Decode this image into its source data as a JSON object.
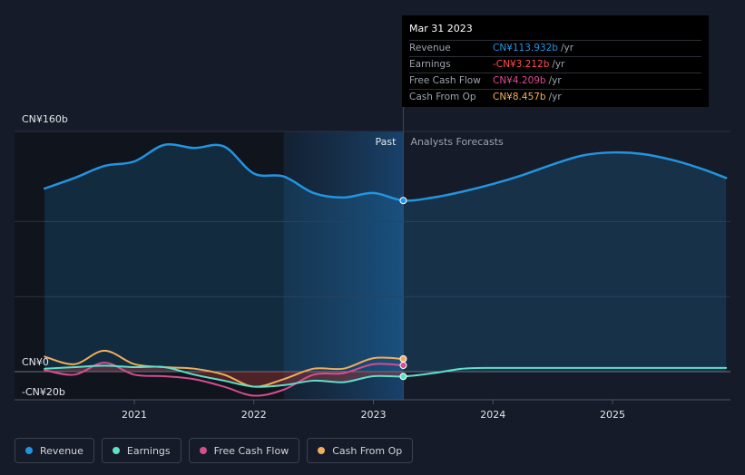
{
  "colors": {
    "revenue": "#2394df",
    "earnings": "#5ee0c8",
    "free_cash_flow": "#d64d90",
    "cash_from_op": "#f0ae5b",
    "background": "#151b28"
  },
  "tooltip": {
    "date": "Mar 31 2023",
    "rows": [
      {
        "label": "Revenue",
        "value": "CN¥113.932b",
        "unit": "/yr",
        "color": "#2394df"
      },
      {
        "label": "Earnings",
        "value": "-CN¥3.212b",
        "unit": "/yr",
        "color": "#ff4d4d"
      },
      {
        "label": "Free Cash Flow",
        "value": "CN¥4.209b",
        "unit": "/yr",
        "color": "#d64d90"
      },
      {
        "label": "Cash From Op",
        "value": "CN¥8.457b",
        "unit": "/yr",
        "color": "#f0ae5b"
      }
    ]
  },
  "legend": [
    {
      "label": "Revenue",
      "color": "#2394df"
    },
    {
      "label": "Earnings",
      "color": "#5ee0c8"
    },
    {
      "label": "Free Cash Flow",
      "color": "#d64d90"
    },
    {
      "label": "Cash From Op",
      "color": "#f0ae5b"
    }
  ],
  "chart_data": {
    "type": "line",
    "title": "",
    "y_tick_labels": [
      "CN¥160b",
      "CN¥0",
      "-CN¥20b"
    ],
    "x_tick_labels": [
      "2021",
      "2022",
      "2023",
      "2024",
      "2025"
    ],
    "x_ticks": [
      2021,
      2022,
      2023,
      2024,
      2025
    ],
    "ylim": [
      -20,
      160
    ],
    "xlim": [
      2020.25,
      2025.95
    ],
    "past_label": "Past",
    "forecast_label": "Analysts Forecasts",
    "present_x": 2023.25,
    "past_band_start": 2022.25,
    "series": [
      {
        "name": "Revenue",
        "key": "revenue",
        "x": [
          2020.25,
          2020.5,
          2020.75,
          2021.0,
          2021.25,
          2021.5,
          2021.75,
          2022.0,
          2022.25,
          2022.5,
          2022.75,
          2023.0,
          2023.25,
          2023.5,
          2023.75,
          2024.0,
          2024.25,
          2024.5,
          2024.75,
          2025.0,
          2025.25,
          2025.5,
          2025.75,
          2025.95
        ],
        "values": [
          122,
          129,
          137,
          140,
          151,
          149,
          150,
          132,
          130,
          119,
          116,
          119,
          114,
          116,
          120,
          125,
          131,
          138,
          144,
          146,
          145,
          141,
          135,
          129
        ]
      },
      {
        "name": "Earnings",
        "key": "earnings",
        "x": [
          2020.25,
          2020.5,
          2020.75,
          2021.0,
          2021.25,
          2021.5,
          2021.75,
          2022.0,
          2022.25,
          2022.5,
          2022.75,
          2023.0,
          2023.25,
          2023.5,
          2023.75,
          2024.0,
          2024.5,
          2025.0,
          2025.5,
          2025.95
        ],
        "values": [
          2,
          3,
          4,
          3,
          3,
          -2,
          -6,
          -10,
          -9,
          -6,
          -7,
          -3,
          -3.2,
          -1,
          2,
          2.5,
          2.5,
          2.5,
          2.5,
          2.5
        ]
      },
      {
        "name": "Free Cash Flow",
        "key": "free_cash_flow",
        "x": [
          2020.25,
          2020.5,
          2020.75,
          2021.0,
          2021.25,
          2021.5,
          2021.75,
          2022.0,
          2022.25,
          2022.5,
          2022.75,
          2023.0,
          2023.25
        ],
        "values": [
          1,
          -2,
          6,
          -2,
          -3,
          -5,
          -10,
          -16,
          -12,
          -2,
          -1,
          5,
          4.2
        ]
      },
      {
        "name": "Cash From Op",
        "key": "cash_from_op",
        "x": [
          2020.25,
          2020.5,
          2020.75,
          2021.0,
          2021.25,
          2021.5,
          2021.75,
          2022.0,
          2022.25,
          2022.5,
          2022.75,
          2023.0,
          2023.25
        ],
        "values": [
          10,
          5,
          14,
          5,
          3,
          2,
          -2,
          -10,
          -5,
          2,
          2,
          9,
          8.5
        ]
      }
    ]
  }
}
